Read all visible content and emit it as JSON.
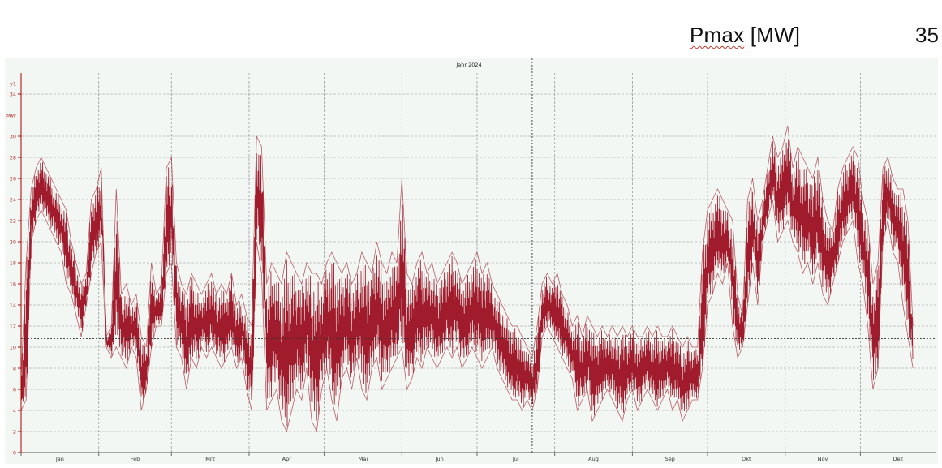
{
  "header": {
    "title_main": "Pmax",
    "title_unit": " [MW]",
    "value": "35"
  },
  "chart_data": {
    "type": "line",
    "title": "Jahr 2024",
    "axis_id": "y1",
    "ylabel": "MW",
    "ylim": [
      0,
      36
    ],
    "yticks": [
      0,
      2,
      4,
      6,
      8,
      10,
      12,
      14,
      16,
      18,
      20,
      22,
      24,
      26,
      28,
      30,
      34
    ],
    "xlim": [
      1,
      366
    ],
    "months": [
      {
        "label": "Jan",
        "start": 1
      },
      {
        "label": "Feb",
        "start": 32
      },
      {
        "label": "Mrz",
        "start": 61
      },
      {
        "label": "Apr",
        "start": 92
      },
      {
        "label": "Mai",
        "start": 122
      },
      {
        "label": "Jun",
        "start": 153
      },
      {
        "label": "Jul",
        "start": 183
      },
      {
        "label": "Aug",
        "start": 214
      },
      {
        "label": "Sep",
        "start": 245
      },
      {
        "label": "Okt",
        "start": 275
      },
      {
        "label": "Nov",
        "start": 306
      },
      {
        "label": "Dez",
        "start": 336
      }
    ],
    "cursor_day": 205,
    "cursor_value": 10.8,
    "series": [
      {
        "x": [
          1,
          3,
          5,
          7,
          9,
          11,
          13,
          15,
          17,
          19,
          21,
          23,
          25,
          27,
          29,
          31,
          33,
          35,
          37,
          39,
          41,
          43,
          45,
          47,
          49,
          51,
          53,
          55,
          57,
          59,
          61,
          63,
          65,
          67,
          69,
          71,
          73,
          75,
          77,
          79,
          81,
          83,
          85,
          87,
          89,
          91,
          93,
          95,
          97,
          99,
          101,
          103,
          105,
          107,
          109,
          111,
          113,
          115,
          117,
          119,
          121,
          123,
          125,
          127,
          129,
          131,
          133,
          135,
          137,
          139,
          141,
          143,
          145,
          147,
          149,
          151,
          153,
          155,
          157,
          159,
          161,
          163,
          165,
          167,
          169,
          171,
          173,
          175,
          177,
          179,
          181,
          183,
          185,
          187,
          189,
          191,
          193,
          195,
          197,
          199,
          201,
          203,
          205,
          207,
          209,
          211,
          213,
          215,
          217,
          219,
          221,
          223,
          225,
          227,
          229,
          231,
          233,
          235,
          237,
          239,
          241,
          243,
          245,
          247,
          249,
          251,
          253,
          255,
          257,
          259,
          261,
          263,
          265,
          267,
          269,
          271,
          273,
          275,
          277,
          279,
          281,
          283,
          285,
          287,
          289,
          291,
          293,
          295,
          297,
          299,
          301,
          303,
          305,
          307,
          309,
          311,
          313,
          315,
          317,
          319,
          321,
          323,
          325,
          327,
          329,
          331,
          333,
          335,
          337,
          339,
          341,
          343,
          345,
          347,
          349,
          351,
          353,
          355,
          357,
          359,
          361,
          363,
          365
        ],
        "max": [
          7,
          18,
          25,
          27,
          28,
          27,
          26,
          25,
          24,
          23,
          20,
          18,
          16,
          17,
          24,
          25,
          27,
          11,
          12,
          25,
          15,
          16,
          14,
          15,
          11,
          10,
          18,
          15,
          16,
          27,
          28,
          18,
          16,
          15,
          17,
          16,
          15,
          16,
          17,
          15,
          16,
          15,
          17,
          14,
          15,
          13,
          12,
          30,
          29,
          16,
          18,
          17,
          16,
          19,
          18,
          17,
          16,
          18,
          17,
          17,
          16,
          18,
          19,
          18,
          17,
          18,
          16,
          17,
          19,
          18,
          17,
          20,
          18,
          17,
          19,
          18,
          26,
          17,
          16,
          18,
          19,
          17,
          18,
          16,
          17,
          18,
          19,
          18,
          16,
          17,
          18,
          19,
          17,
          18,
          16,
          15,
          14,
          13,
          12,
          12,
          11,
          10,
          9,
          12,
          16,
          17,
          16,
          17,
          15,
          14,
          12,
          13,
          11,
          13,
          12,
          11,
          12,
          11,
          12,
          11,
          12,
          11,
          12,
          11,
          11,
          12,
          11,
          12,
          11,
          11,
          12,
          11,
          10,
          11,
          10,
          10,
          19,
          23,
          24,
          25,
          24,
          23,
          22,
          15,
          13,
          24,
          26,
          22,
          24,
          27,
          30,
          28,
          29,
          31,
          27,
          29,
          28,
          27,
          26,
          28,
          24,
          22,
          21,
          25,
          27,
          28,
          29,
          28,
          24,
          22,
          16,
          18,
          27,
          28,
          26,
          25,
          25,
          22,
          12
        ]
      },
      {
        "x": [
          1,
          3,
          5,
          7,
          9,
          11,
          13,
          15,
          17,
          19,
          21,
          23,
          25,
          27,
          29,
          31,
          33,
          35,
          37,
          39,
          41,
          43,
          45,
          47,
          49,
          51,
          53,
          55,
          57,
          59,
          61,
          63,
          65,
          67,
          69,
          71,
          73,
          75,
          77,
          79,
          81,
          83,
          85,
          87,
          89,
          91,
          93,
          95,
          97,
          99,
          101,
          103,
          105,
          107,
          109,
          111,
          113,
          115,
          117,
          119,
          121,
          123,
          125,
          127,
          129,
          131,
          133,
          135,
          137,
          139,
          141,
          143,
          145,
          147,
          149,
          151,
          153,
          155,
          157,
          159,
          161,
          163,
          165,
          167,
          169,
          171,
          173,
          175,
          177,
          179,
          181,
          183,
          185,
          187,
          189,
          191,
          193,
          195,
          197,
          199,
          201,
          203,
          205,
          207,
          209,
          211,
          213,
          215,
          217,
          219,
          221,
          223,
          225,
          227,
          229,
          231,
          233,
          235,
          237,
          239,
          241,
          243,
          245,
          247,
          249,
          251,
          253,
          255,
          257,
          259,
          261,
          263,
          265,
          267,
          269,
          271,
          273,
          275,
          277,
          279,
          281,
          283,
          285,
          287,
          289,
          291,
          293,
          295,
          297,
          299,
          301,
          303,
          305,
          307,
          309,
          311,
          313,
          315,
          317,
          319,
          321,
          323,
          325,
          327,
          329,
          331,
          333,
          335,
          337,
          339,
          341,
          343,
          345,
          347,
          349,
          351,
          353,
          355,
          357,
          359,
          361,
          363,
          365
        ],
        "min": [
          4,
          5,
          20,
          22,
          23,
          22,
          21,
          20,
          19,
          16,
          15,
          13,
          11,
          14,
          17,
          19,
          20,
          10,
          9,
          10,
          9,
          8,
          10,
          9,
          4,
          6,
          10,
          12,
          12,
          17,
          18,
          10,
          9,
          6,
          9,
          8,
          10,
          9,
          10,
          9,
          8,
          9,
          10,
          8,
          9,
          6,
          4,
          20,
          17,
          4,
          5,
          6,
          3,
          2,
          4,
          6,
          5,
          8,
          3,
          2,
          6,
          8,
          5,
          3,
          7,
          8,
          6,
          9,
          6,
          5,
          8,
          9,
          6,
          7,
          8,
          9,
          10,
          6,
          7,
          9,
          8,
          10,
          9,
          8,
          9,
          10,
          9,
          10,
          8,
          9,
          10,
          9,
          8,
          9,
          10,
          8,
          7,
          6,
          5,
          5,
          4,
          5,
          4,
          6,
          11,
          12,
          11,
          10,
          9,
          8,
          7,
          4,
          5,
          6,
          3,
          4,
          5,
          6,
          5,
          4,
          3,
          5,
          6,
          4,
          5,
          6,
          5,
          4,
          5,
          6,
          4,
          5,
          3,
          4,
          5,
          5,
          8,
          14,
          15,
          17,
          16,
          18,
          12,
          9,
          10,
          14,
          18,
          14,
          20,
          22,
          24,
          20,
          21,
          22,
          20,
          19,
          17,
          18,
          16,
          18,
          15,
          14,
          16,
          18,
          20,
          21,
          22,
          18,
          16,
          12,
          6,
          8,
          20,
          22,
          19,
          18,
          14,
          11,
          8
        ]
      }
    ]
  }
}
